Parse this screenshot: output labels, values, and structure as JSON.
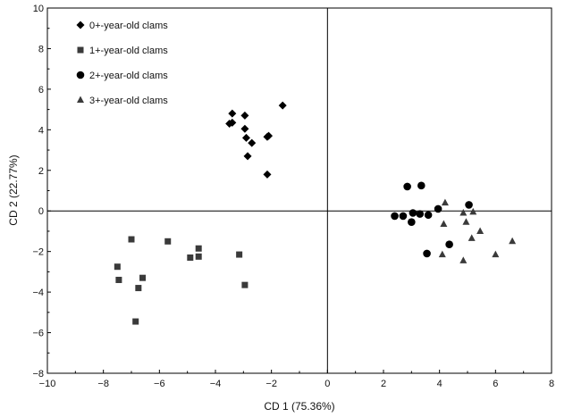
{
  "chart_data": {
    "type": "scatter",
    "xlabel": "CD 1 (75.36%)",
    "ylabel": "CD 2 (22.77%)",
    "xlim": [
      -10,
      8
    ],
    "ylim": [
      -8,
      10
    ],
    "xticks": [
      -10,
      -8,
      -6,
      -4,
      -2,
      0,
      2,
      4,
      6,
      8
    ],
    "yticks": [
      -8,
      -6,
      -4,
      -2,
      0,
      2,
      4,
      6,
      8,
      10
    ],
    "tick_labels_x": [
      "−10",
      "−8",
      "−6",
      "−4",
      "−2",
      "0",
      "2",
      "4",
      "6",
      "8"
    ],
    "tick_labels_y": [
      "−8",
      "−6",
      "−4",
      "−2",
      "0",
      "2",
      "4",
      "6",
      "8",
      "10"
    ],
    "grid": false,
    "reference_lines": {
      "x": 0,
      "y": 0
    },
    "legend_position": "top-left",
    "series": [
      {
        "name": "0+-year-old clams",
        "marker": "diamond",
        "color": "#000000",
        "points": [
          [
            -1.6,
            5.2
          ],
          [
            -3.4,
            4.8
          ],
          [
            -2.95,
            4.7
          ],
          [
            -3.5,
            4.3
          ],
          [
            -3.4,
            4.35
          ],
          [
            -2.95,
            4.05
          ],
          [
            -2.9,
            3.6
          ],
          [
            -2.7,
            3.35
          ],
          [
            -2.1,
            3.7
          ],
          [
            -2.15,
            3.65
          ],
          [
            -2.85,
            2.7
          ],
          [
            -2.15,
            1.8
          ]
        ]
      },
      {
        "name": "1+-year-old clams",
        "marker": "square",
        "color": "#3a3a3a",
        "points": [
          [
            -7.0,
            -1.4
          ],
          [
            -5.7,
            -1.5
          ],
          [
            -4.6,
            -1.85
          ],
          [
            -4.9,
            -2.3
          ],
          [
            -4.6,
            -2.25
          ],
          [
            -3.15,
            -2.15
          ],
          [
            -7.5,
            -2.75
          ],
          [
            -7.45,
            -3.4
          ],
          [
            -6.6,
            -3.3
          ],
          [
            -6.75,
            -3.8
          ],
          [
            -2.95,
            -3.65
          ],
          [
            -6.85,
            -5.45
          ]
        ]
      },
      {
        "name": "2+-year-old clams",
        "marker": "circle",
        "color": "#000000",
        "points": [
          [
            2.85,
            1.2
          ],
          [
            3.35,
            1.25
          ],
          [
            5.05,
            0.3
          ],
          [
            3.95,
            0.1
          ],
          [
            2.4,
            -0.25
          ],
          [
            2.7,
            -0.25
          ],
          [
            3.05,
            -0.1
          ],
          [
            3.3,
            -0.15
          ],
          [
            3.6,
            -0.2
          ],
          [
            3.0,
            -0.55
          ],
          [
            4.35,
            -1.65
          ],
          [
            3.55,
            -2.1
          ]
        ]
      },
      {
        "name": "3+-year-old clams",
        "marker": "triangle",
        "color": "#3a3a3a",
        "points": [
          [
            4.2,
            0.4
          ],
          [
            4.85,
            -0.1
          ],
          [
            5.2,
            -0.05
          ],
          [
            4.15,
            -0.65
          ],
          [
            4.95,
            -0.55
          ],
          [
            5.45,
            -1.0
          ],
          [
            5.15,
            -1.35
          ],
          [
            6.6,
            -1.5
          ],
          [
            4.1,
            -2.15
          ],
          [
            6.0,
            -2.15
          ],
          [
            4.85,
            -2.45
          ]
        ]
      }
    ]
  }
}
